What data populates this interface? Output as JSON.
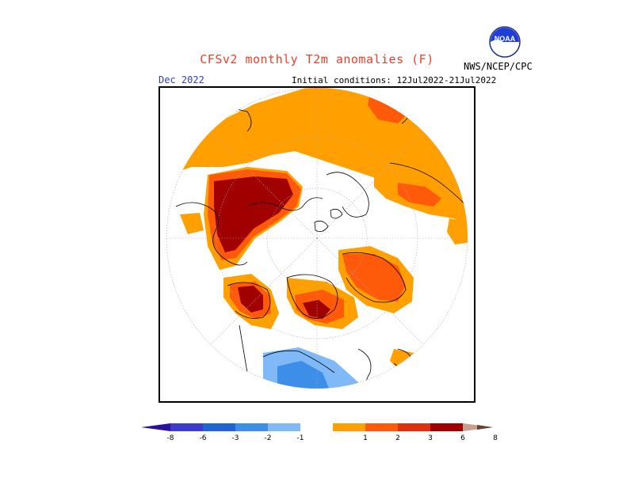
{
  "header": {
    "title": "CFSv2 monthly T2m anomalies (F)",
    "month": "Dec 2022",
    "initial_conditions": "Initial conditions: 12Jul2022-21Jul2022",
    "agency": "NWS/NCEP/CPC",
    "logo_text": "NOAA"
  },
  "legend": {
    "ticks": [
      "-8",
      "-6",
      "-3",
      "-2",
      "-1",
      "1",
      "2",
      "3",
      "6",
      "8"
    ],
    "colors": {
      "lt_-8": "#2b10a0",
      "-8_-6": "#3b3bd0",
      "-6_-3": "#1f64d2",
      "-3_-2": "#3c8ee8",
      "-2_-1": "#7fb9f8",
      "-1_1": "#ffffff",
      "1_2": "#ff9f00",
      "2_3": "#ff5a0a",
      "3_6": "#e03010",
      "6_8": "#a00000",
      "gt_8": "#c99e8c",
      "gt_8_tip": "#6b4030"
    }
  },
  "colors": {
    "title": "#e8412b",
    "month": "#2f3fd0",
    "anomaly_1_2": "#ff9f00",
    "anomaly_2_3": "#ff5a0a",
    "anomaly_3_6": "#e03010",
    "anomaly_6_8": "#a00000",
    "anomaly_neg_1_2": "#7fb9f8",
    "anomaly_neg_2_3": "#3c8ee8"
  }
}
